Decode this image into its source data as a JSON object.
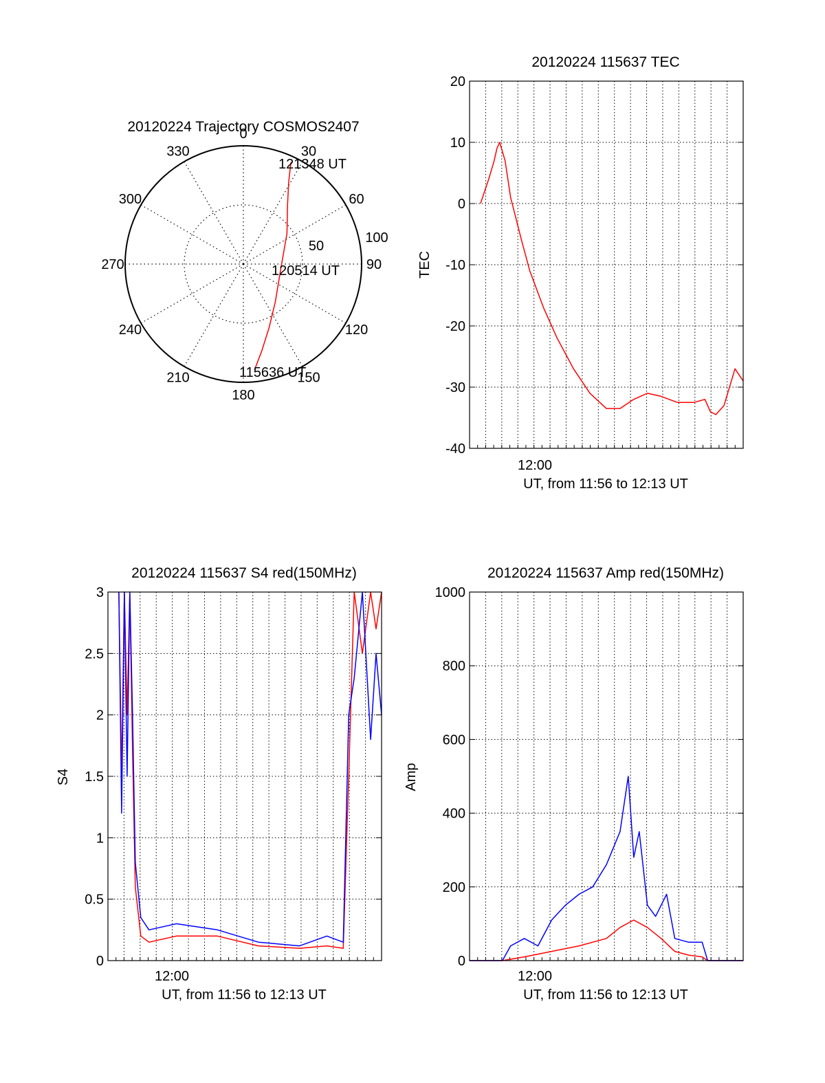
{
  "chart_data": [
    {
      "type": "polar",
      "title": "20120224 Trajectory COSMOS2407",
      "angle_labels": [
        "0",
        "30",
        "60",
        "90",
        "120",
        "150",
        "180",
        "210",
        "240",
        "270",
        "300",
        "330"
      ],
      "radius_labels": [
        "50",
        "100"
      ],
      "rlim": [
        0,
        100
      ],
      "grid": true,
      "annotations": [
        "121348 UT",
        "120514 UT",
        "115636 UT"
      ],
      "series": [
        {
          "color": "#ff0000",
          "points": [
            {
              "az": 174,
              "zen": 90
            },
            {
              "az": 168,
              "zen": 75
            },
            {
              "az": 158,
              "zen": 58
            },
            {
              "az": 140,
              "zen": 42
            },
            {
              "az": 95,
              "zen": 32
            },
            {
              "az": 55,
              "zen": 45
            },
            {
              "az": 37,
              "zen": 62
            },
            {
              "az": 29,
              "zen": 79
            },
            {
              "az": 25,
              "zen": 95
            }
          ]
        }
      ]
    },
    {
      "type": "line",
      "title": "20120224 115637 TEC",
      "ylabel": "TEC",
      "xlabel": "UT, from 11:56 to 12:13 UT",
      "xticklabels": [
        "12:00"
      ],
      "ylim": [
        -40,
        20
      ],
      "yticks": [
        "20",
        "10",
        "0",
        "-10",
        "-20",
        "-30",
        "-40"
      ],
      "grid": true,
      "series": [
        {
          "color": "#ff0000",
          "t": [
            0.04,
            0.07,
            0.09,
            0.1,
            0.11,
            0.13,
            0.15,
            0.19,
            0.22,
            0.27,
            0.32,
            0.38,
            0.44,
            0.5,
            0.55,
            0.6,
            0.65,
            0.7,
            0.76,
            0.82,
            0.86,
            0.88,
            0.9,
            0.93,
            0.95,
            0.97,
            1.0
          ],
          "values": [
            0,
            4,
            7,
            9,
            10,
            7,
            1,
            -6,
            -11,
            -17,
            -22,
            -27,
            -31,
            -33.5,
            -33.5,
            -32,
            -31,
            -31.5,
            -32.5,
            -32.5,
            -32,
            -34,
            -34.5,
            -33,
            -30,
            -27,
            -29
          ]
        }
      ]
    },
    {
      "type": "line",
      "title": "20120224 115637 S4 red(150MHz)",
      "ylabel": "S4",
      "xlabel": "UT, from 11:56 to 12:13 UT",
      "xticklabels": [
        "12:00"
      ],
      "ylim": [
        0,
        3
      ],
      "yticks": [
        "3",
        "2.5",
        "2",
        "1.5",
        "1",
        "0.5",
        "0"
      ],
      "grid": true,
      "series": [
        {
          "color": "#ff0000",
          "t": [
            0.04,
            0.05,
            0.06,
            0.07,
            0.08,
            0.09,
            0.1,
            0.12,
            0.15,
            0.25,
            0.4,
            0.55,
            0.7,
            0.8,
            0.86,
            0.88,
            0.9,
            0.93,
            0.96,
            0.98,
            1.0
          ],
          "values": [
            3,
            1.5,
            3,
            2,
            3,
            1.7,
            0.6,
            0.2,
            0.15,
            0.2,
            0.2,
            0.12,
            0.1,
            0.12,
            0.1,
            1.5,
            3,
            2.5,
            3,
            2.7,
            3
          ]
        },
        {
          "color": "#0000ff",
          "t": [
            0.04,
            0.05,
            0.06,
            0.07,
            0.08,
            0.09,
            0.1,
            0.12,
            0.15,
            0.25,
            0.4,
            0.55,
            0.7,
            0.8,
            0.86,
            0.88,
            0.9,
            0.93,
            0.96,
            0.98,
            1.0
          ],
          "values": [
            3,
            1.2,
            3,
            1.5,
            3,
            2,
            0.8,
            0.35,
            0.25,
            0.3,
            0.25,
            0.15,
            0.12,
            0.2,
            0.15,
            2,
            2.3,
            3,
            1.8,
            2.5,
            2
          ]
        }
      ]
    },
    {
      "type": "line",
      "title": "20120224 115637 Amp red(150MHz)",
      "ylabel": "Amp",
      "xlabel": "UT, from 11:56 to 12:13 UT",
      "xticklabels": [
        "12:00"
      ],
      "ylim": [
        0,
        1000
      ],
      "yticks": [
        "1000",
        "800",
        "600",
        "400",
        "200",
        "0"
      ],
      "grid": true,
      "series": [
        {
          "color": "#ff0000",
          "t": [
            0.0,
            0.12,
            0.2,
            0.3,
            0.4,
            0.5,
            0.55,
            0.6,
            0.65,
            0.7,
            0.75,
            0.8,
            0.85,
            0.87,
            0.9,
            1.0
          ],
          "values": [
            0,
            0,
            10,
            25,
            40,
            60,
            90,
            110,
            90,
            60,
            25,
            15,
            10,
            0,
            0,
            0
          ]
        },
        {
          "color": "#0000ff",
          "t": [
            0.0,
            0.12,
            0.15,
            0.2,
            0.25,
            0.3,
            0.35,
            0.4,
            0.45,
            0.5,
            0.55,
            0.58,
            0.6,
            0.62,
            0.65,
            0.68,
            0.72,
            0.75,
            0.8,
            0.85,
            0.87,
            0.9,
            1.0
          ],
          "values": [
            0,
            0,
            40,
            60,
            40,
            110,
            150,
            180,
            200,
            260,
            350,
            500,
            280,
            350,
            150,
            120,
            180,
            60,
            50,
            50,
            0,
            0,
            0
          ]
        }
      ]
    }
  ]
}
